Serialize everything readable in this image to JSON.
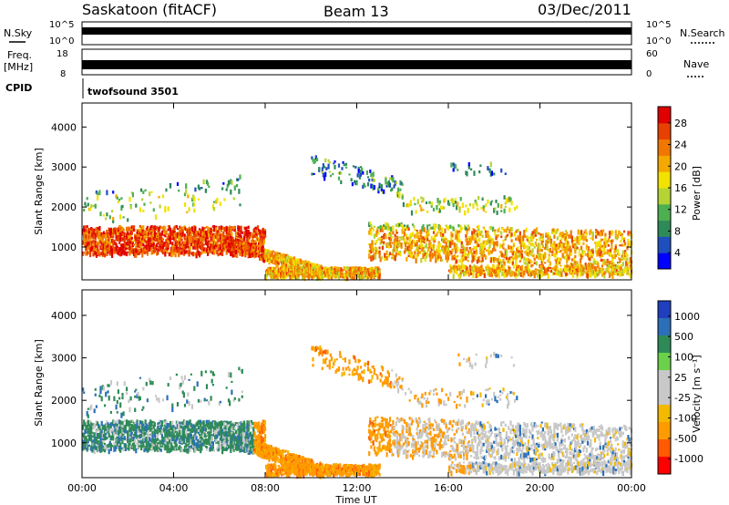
{
  "header": {
    "site": "Saskatoon (fitACF)",
    "beam": "Beam 13",
    "date": "03/Dec/2011"
  },
  "top_labels": {
    "nsky": "N.Sky",
    "freq_line1": "Freq.",
    "freq_line2": "[MHz]",
    "cpid": "CPID",
    "nsearch": "N.Search",
    "nave": "Nave",
    "cpid_value": "twofsound 3501",
    "nsky_ticks": [
      "10^5",
      "10^0"
    ],
    "nsearch_ticks": [
      "10^5",
      "10^0"
    ],
    "freq_ticks": [
      "18",
      "8"
    ],
    "nave_ticks": [
      "60",
      "0"
    ]
  },
  "colors": {
    "power_scale": [
      "#0000ff",
      "#1f4fbf",
      "#2e8b57",
      "#4caf50",
      "#b5d334",
      "#f2e200",
      "#f5a800",
      "#f07800",
      "#e84000",
      "#e00000"
    ],
    "velocity_scale": [
      "#ff0000",
      "#ff5a00",
      "#ff9a00",
      "#f2b900",
      "#c8c8c8",
      "#c8c8c8",
      "#6ad14a",
      "#2e8b57",
      "#2a6fb8",
      "#1f3fbf"
    ]
  },
  "chart_data": [
    {
      "type": "heatmap",
      "title": "",
      "ylabel": "Slant Range [km]",
      "xlabel": "",
      "yticks": [
        "1000",
        "2000",
        "3000",
        "4000"
      ],
      "xticks": [
        "00:00",
        "04:00",
        "08:00",
        "12:00",
        "16:00",
        "20:00",
        "00:00"
      ],
      "colorbar": {
        "label": "Power [dB]",
        "ticks": [
          "4",
          "8",
          "12",
          "16",
          "20",
          "24",
          "28"
        ]
      }
    },
    {
      "type": "heatmap",
      "title": "",
      "ylabel": "Slant Range [km]",
      "xlabel": "Time UT",
      "yticks": [
        "1000",
        "2000",
        "3000",
        "4000"
      ],
      "xticks": [
        "00:00",
        "04:00",
        "08:00",
        "12:00",
        "16:00",
        "20:00",
        "00:00"
      ],
      "colorbar": {
        "label": "Velocity [m s⁻¹]",
        "ticks": [
          "1000",
          "500",
          "100",
          "25",
          "-25",
          "-100",
          "-500",
          "-1000"
        ]
      }
    }
  ]
}
